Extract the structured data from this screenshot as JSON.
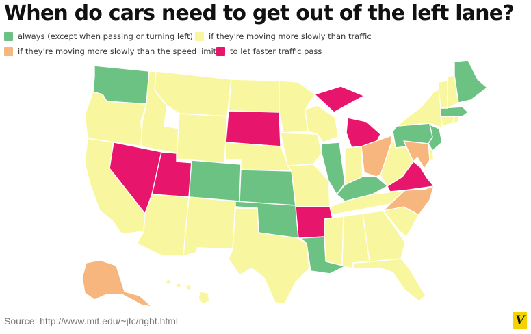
{
  "title": "When do cars need to get out of the left lane?",
  "legend": [
    {
      "label": "always (except when passing or turning left)",
      "color": "#6cc283"
    },
    {
      "label": "if they're moving more slowly than traffic",
      "color": "#f8f7a0"
    },
    {
      "label": "if they're moving more slowly than the speed limit",
      "color": "#f7b67d"
    },
    {
      "label": "to let faster traffic pass",
      "color": "#e8156d"
    }
  ],
  "categories": {
    "always": [
      "Washington",
      "Colorado",
      "Kansas",
      "Oklahoma",
      "Louisiana",
      "Illinois",
      "Kentucky",
      "Pennsylvania",
      "New Jersey",
      "Massachusetts",
      "Maine"
    ],
    "slower_than_traffic": [
      "Oregon",
      "California",
      "Idaho",
      "Montana",
      "Wyoming",
      "Arizona",
      "New Mexico",
      "North Dakota",
      "Nebraska",
      "Texas",
      "Minnesota",
      "Iowa",
      "Missouri",
      "Wisconsin",
      "Indiana",
      "Tennessee",
      "Mississippi",
      "Alabama",
      "Georgia",
      "Florida",
      "South Carolina",
      "West Virginia",
      "New York",
      "Vermont",
      "New Hampshire",
      "Connecticut",
      "Rhode Island",
      "Delaware",
      "Hawaii"
    ],
    "slower_than_speed_limit": [
      "Alaska",
      "Ohio",
      "North Carolina",
      "Maryland"
    ],
    "let_faster_pass": [
      "Nevada",
      "Utah",
      "South Dakota",
      "Arkansas",
      "Michigan",
      "Virginia"
    ]
  },
  "source": "Source: http://www.mit.edu/~jfc/right.html",
  "logo": "V"
}
